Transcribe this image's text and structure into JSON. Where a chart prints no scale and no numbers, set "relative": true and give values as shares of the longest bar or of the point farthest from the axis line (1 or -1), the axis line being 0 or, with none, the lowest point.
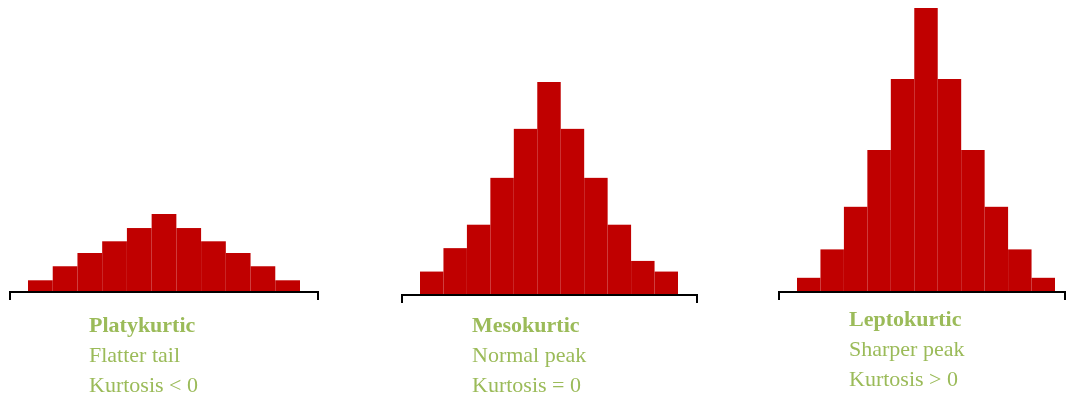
{
  "chart_data": [
    {
      "type": "bar",
      "relative": true,
      "title": "Platykurtic",
      "annotations": [
        "Flatter tail",
        "Kurtosis < 0"
      ],
      "categories": [
        null,
        null,
        null,
        null,
        null,
        null,
        null,
        null,
        null,
        null,
        null
      ],
      "color": "#c00000",
      "values": [
        0.15,
        0.33,
        0.5,
        0.65,
        0.82,
        1,
        0.82,
        0.65,
        0.5,
        0.33,
        0.15
      ]
    },
    {
      "type": "bar",
      "relative": true,
      "title": "Mesokurtic",
      "annotations": [
        "Normal peak",
        "Kurtosis = 0"
      ],
      "categories": [
        null,
        null,
        null,
        null,
        null,
        null,
        null,
        null,
        null,
        null,
        null
      ],
      "color": "#c00000",
      "values": [
        0.11,
        0.22,
        0.33,
        0.55,
        0.78,
        1,
        0.78,
        0.55,
        0.33,
        0.16,
        0.11
      ]
    },
    {
      "type": "bar",
      "relative": true,
      "title": "Leptokurtic",
      "annotations": [
        "Sharper peak",
        "Kurtosis > 0"
      ],
      "categories": [
        null,
        null,
        null,
        null,
        null,
        null,
        null,
        null,
        null,
        null,
        null
      ],
      "color": "#c00000",
      "values": [
        0.05,
        0.15,
        0.3,
        0.5,
        0.75,
        1,
        0.75,
        0.5,
        0.3,
        0.15,
        0.05
      ]
    }
  ]
}
